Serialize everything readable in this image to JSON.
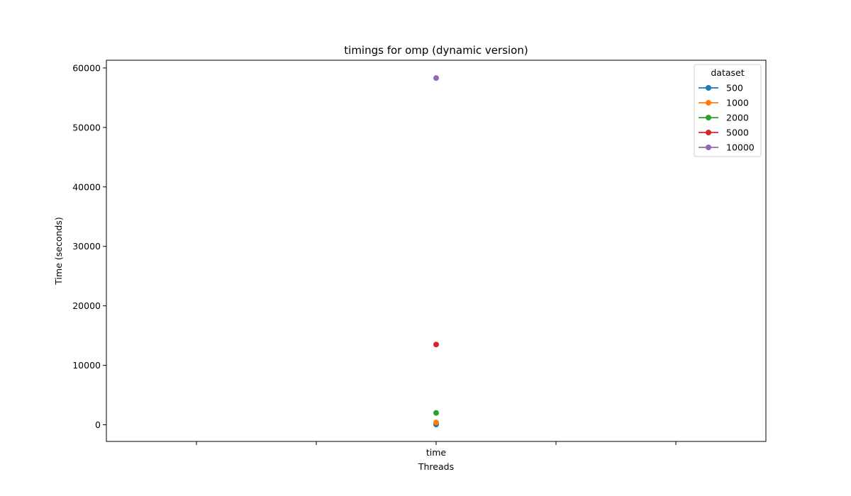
{
  "chart_data": {
    "type": "line",
    "title": "timings for omp (dynamic version)",
    "xlabel": "Threads",
    "ylabel": "Time (seconds)",
    "categories": [
      "",
      "",
      "time",
      "",
      ""
    ],
    "ylim": [
      -2800,
      61300
    ],
    "yticks": [
      0,
      10000,
      20000,
      30000,
      40000,
      50000,
      60000
    ],
    "ytick_labels": [
      "0",
      "10000",
      "20000",
      "30000",
      "40000",
      "50000",
      "60000"
    ],
    "grid": false,
    "legend": {
      "title": "dataset",
      "placement": "top-right"
    },
    "series": [
      {
        "name": "500",
        "color": "#1f77b4",
        "x": [
          2
        ],
        "values": [
          60
        ]
      },
      {
        "name": "1000",
        "color": "#ff7f0e",
        "x": [
          2
        ],
        "values": [
          400
        ]
      },
      {
        "name": "2000",
        "color": "#2ca02c",
        "x": [
          2
        ],
        "values": [
          2000
        ]
      },
      {
        "name": "5000",
        "color": "#d62728",
        "x": [
          2
        ],
        "values": [
          13500
        ]
      },
      {
        "name": "10000",
        "color": "#9467bd",
        "x": [
          2
        ],
        "values": [
          58300
        ]
      }
    ]
  }
}
